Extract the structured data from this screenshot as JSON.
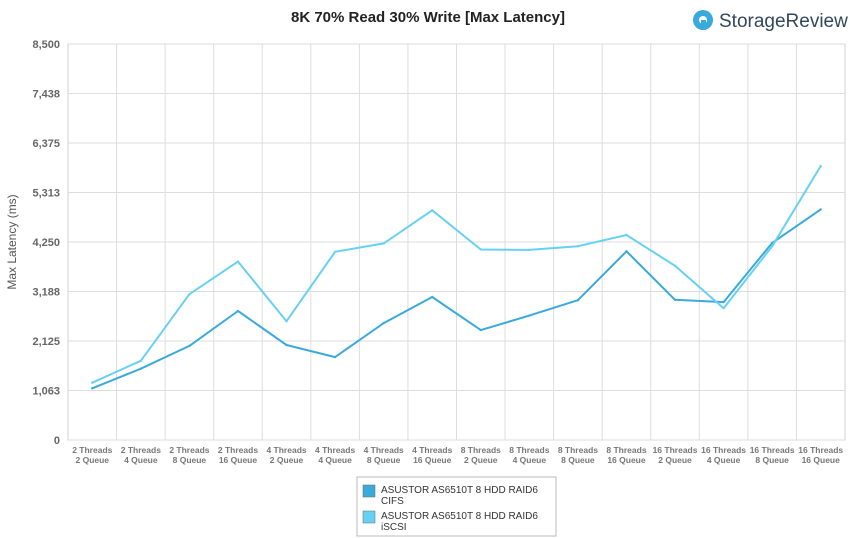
{
  "brand": {
    "logo_text": "StorageReview"
  },
  "chart_data": {
    "type": "line",
    "title": "8K 70% Read 30% Write [Max Latency]",
    "xlabel": "",
    "ylabel": "Max Latency (ms)",
    "ylim": [
      0,
      8500
    ],
    "yticks": [
      0,
      1063,
      2125,
      3188,
      4250,
      5313,
      6375,
      7438,
      8500
    ],
    "ytick_labels": [
      "0",
      "1,063",
      "2,125",
      "3,188",
      "4,250",
      "5,313",
      "6,375",
      "7,438",
      "8,500"
    ],
    "grid": true,
    "legend_position": "bottom",
    "categories": [
      [
        "2 Threads",
        "2 Queue"
      ],
      [
        "2 Threads",
        "4 Queue"
      ],
      [
        "2 Threads",
        "8 Queue"
      ],
      [
        "2 Threads",
        "16 Queue"
      ],
      [
        "4 Threads",
        "2 Queue"
      ],
      [
        "4 Threads",
        "4 Queue"
      ],
      [
        "4 Threads",
        "8 Queue"
      ],
      [
        "4 Threads",
        "16 Queue"
      ],
      [
        "8 Threads",
        "2 Queue"
      ],
      [
        "8 Threads",
        "4 Queue"
      ],
      [
        "8 Threads",
        "8 Queue"
      ],
      [
        "8 Threads",
        "16 Queue"
      ],
      [
        "16 Threads",
        "2 Queue"
      ],
      [
        "16 Threads",
        "4 Queue"
      ],
      [
        "16 Threads",
        "8 Queue"
      ],
      [
        "16 Threads",
        "16 Queue"
      ]
    ],
    "series": [
      {
        "name": [
          "ASUSTOR AS6510T 8 HDD RAID6",
          "CIFS"
        ],
        "color": "#3aa9dc",
        "values": [
          1110,
          1530,
          2020,
          2770,
          2040,
          1780,
          2510,
          3070,
          2360,
          2670,
          3000,
          4050,
          3010,
          2960,
          4230,
          4950
        ]
      },
      {
        "name": [
          "ASUSTOR AS6510T 8 HDD RAID6",
          "iSCSI"
        ],
        "color": "#66d1f2",
        "values": [
          1230,
          1700,
          3130,
          3830,
          2550,
          4040,
          4220,
          4930,
          4090,
          4080,
          4160,
          4400,
          3740,
          2830,
          4160,
          5880
        ]
      }
    ]
  }
}
